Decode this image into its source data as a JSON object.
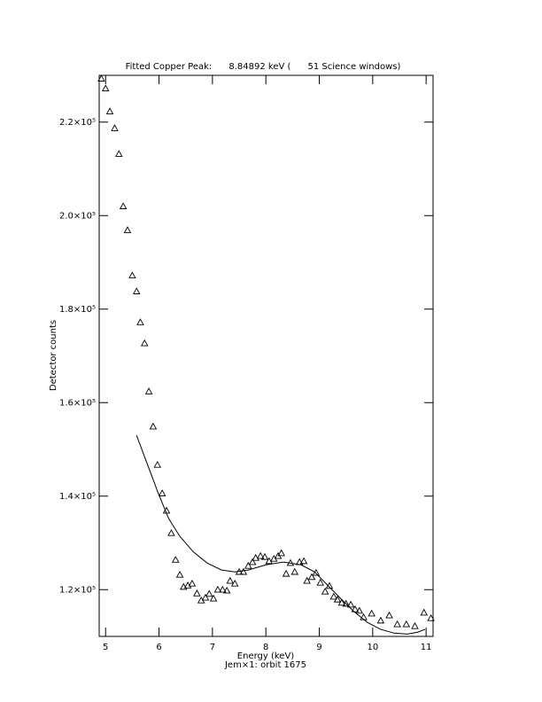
{
  "chart_data": {
    "type": "scatter",
    "title": "Fitted Copper Peak:      8.84892 keV (      51 Science windows)",
    "x_label": "Energy (keV)",
    "subtitle": "Jem×1: orbit 1675",
    "y_label": "Detector counts",
    "xlim": [
      4.88,
      11.13
    ],
    "ylim": [
      110000,
      230000
    ],
    "xticks": [
      5,
      6,
      7,
      8,
      9,
      10,
      11
    ],
    "yticks": [
      {
        "value": 120000,
        "label": "1.2×10⁵"
      },
      {
        "value": 140000,
        "label": "1.4×10⁵"
      },
      {
        "value": 160000,
        "label": "1.6×10⁵"
      },
      {
        "value": 180000,
        "label": "1.8×10⁵"
      },
      {
        "value": 200000,
        "label": "2.0×10⁵"
      },
      {
        "value": 220000,
        "label": "2.2×10⁵"
      }
    ],
    "grid": false,
    "series": [
      {
        "mode": "markers",
        "marker": "triangle",
        "color": "#000000",
        "x": [
          4.92,
          5.0,
          5.08,
          5.17,
          5.25,
          5.33,
          5.41,
          5.5,
          5.58,
          5.65,
          5.73,
          5.81,
          5.89,
          5.97,
          6.06,
          6.14,
          6.23,
          6.31,
          6.39,
          6.46,
          6.54,
          6.62,
          6.71,
          6.79,
          6.87,
          6.94,
          7.02,
          7.1,
          7.19,
          7.27,
          7.33,
          7.42,
          7.5,
          7.58,
          7.67,
          7.75,
          7.81,
          7.9,
          7.98,
          8.06,
          8.15,
          8.23,
          8.29,
          8.38,
          8.46,
          8.54,
          8.63,
          8.71,
          8.77,
          8.86,
          8.94,
          9.02,
          9.11,
          9.19,
          9.27,
          9.34,
          9.42,
          9.5,
          9.59,
          9.67,
          9.75,
          9.83,
          9.98,
          10.15,
          10.31,
          10.46,
          10.63,
          10.79,
          10.96,
          11.09
        ],
        "values": [
          229300,
          227200,
          222300,
          218700,
          213200,
          202000,
          196900,
          187200,
          183800,
          177200,
          172700,
          162400,
          154900,
          146700,
          140600,
          136900,
          132100,
          126400,
          123200,
          120600,
          120900,
          121300,
          119200,
          117700,
          118300,
          119100,
          118100,
          120000,
          120000,
          119800,
          121900,
          121300,
          123800,
          123800,
          125100,
          125900,
          126800,
          127200,
          127000,
          126100,
          126600,
          127200,
          127800,
          123400,
          125700,
          123800,
          125900,
          126100,
          121900,
          122700,
          123600,
          121500,
          119600,
          120800,
          118500,
          117900,
          117200,
          117000,
          116800,
          115800,
          115500,
          114100,
          114900,
          113400,
          114500,
          112600,
          112600,
          112200,
          115100,
          113900
        ]
      },
      {
        "mode": "line",
        "color": "#000000",
        "x": [
          5.58,
          5.76,
          5.98,
          6.18,
          6.39,
          6.64,
          6.9,
          7.17,
          7.42,
          7.67,
          8.0,
          8.33,
          8.66,
          8.91,
          9.16,
          9.4,
          9.65,
          9.9,
          10.15,
          10.4,
          10.65,
          10.84,
          10.98
        ],
        "values": [
          153000,
          147500,
          140800,
          135200,
          131400,
          128100,
          125700,
          124200,
          123800,
          124200,
          125300,
          125900,
          125300,
          123800,
          120900,
          118100,
          115300,
          113000,
          111500,
          110700,
          110500,
          110900,
          111500
        ]
      }
    ]
  }
}
